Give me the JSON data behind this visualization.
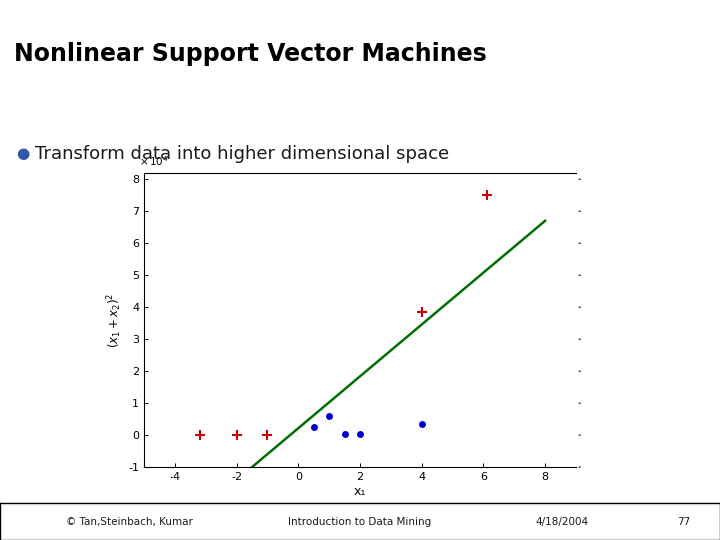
{
  "title": "Nonlinear Support Vector Machines",
  "bullet_text": "Transform data into higher dimensional space",
  "footer_left": "© Tan,Steinbach, Kumar",
  "footer_mid": "Introduction to Data Mining",
  "footer_date": "4/18/2004",
  "footer_page": "77",
  "bg_color": "#ffffff",
  "header_bar1_color": "#00b0f0",
  "header_bar2_color": "#7030a0",
  "title_color": "#000000",
  "xlabel": "x₁",
  "xlim": [
    -5,
    9
  ],
  "ylim": [
    -10000,
    82000
  ],
  "xticks": [
    -4,
    -2,
    0,
    2,
    4,
    6,
    8
  ],
  "ytick_vals": [
    -10000,
    0,
    10000,
    20000,
    30000,
    40000,
    50000,
    60000,
    70000,
    80000
  ],
  "ytick_labels": [
    "-1",
    "0",
    "1",
    "2",
    "3",
    "4",
    "5",
    "6",
    "7",
    "8"
  ],
  "red_plus_x": [
    -3.2,
    -2.0,
    -1.0,
    4.0,
    6.1
  ],
  "red_plus_y": [
    0,
    0,
    0,
    38500,
    75000
  ],
  "blue_dot_x": [
    0.5,
    1.0,
    1.5,
    2.0,
    4.0
  ],
  "blue_dot_y": [
    2500,
    6000,
    200,
    200,
    3500
  ],
  "line_x": [
    -1.5,
    8.0
  ],
  "line_y": [
    -10000,
    67000
  ],
  "line_color": "#007000",
  "red_color": "#cc0000",
  "blue_color": "#0000cc",
  "bullet_color": "#3355aa"
}
